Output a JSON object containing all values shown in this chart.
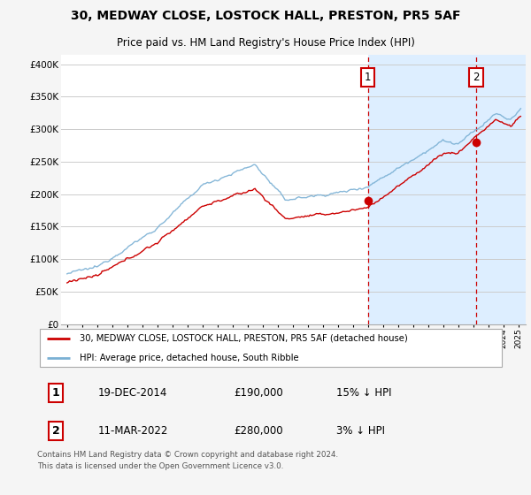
{
  "title": "30, MEDWAY CLOSE, LOSTOCK HALL, PRESTON, PR5 5AF",
  "subtitle": "Price paid vs. HM Land Registry's House Price Index (HPI)",
  "ylabel_ticks": [
    "£0",
    "£50K",
    "£100K",
    "£150K",
    "£200K",
    "£250K",
    "£300K",
    "£350K",
    "£400K"
  ],
  "ytick_values": [
    0,
    50000,
    100000,
    150000,
    200000,
    250000,
    300000,
    350000,
    400000
  ],
  "ylim": [
    0,
    415000
  ],
  "xlim_start": 1994.6,
  "xlim_end": 2025.5,
  "hpi_color": "#7ab0d4",
  "price_color": "#cc0000",
  "transaction1_date": "19-DEC-2014",
  "transaction1_price": 190000,
  "transaction1_label": "15% ↓ HPI",
  "transaction1_year": 2015.0,
  "transaction2_date": "11-MAR-2022",
  "transaction2_price": 280000,
  "transaction2_label": "3% ↓ HPI",
  "transaction2_year": 2022.2,
  "legend_label1": "30, MEDWAY CLOSE, LOSTOCK HALL, PRESTON, PR5 5AF (detached house)",
  "legend_label2": "HPI: Average price, detached house, South Ribble",
  "footnote": "Contains HM Land Registry data © Crown copyright and database right 2024.\nThis data is licensed under the Open Government Licence v3.0.",
  "background_color": "#f5f5f5",
  "plot_bg_color": "#ffffff",
  "grid_color": "#cccccc",
  "vline_color": "#cc0000",
  "highlight_bg": "#ddeeff"
}
